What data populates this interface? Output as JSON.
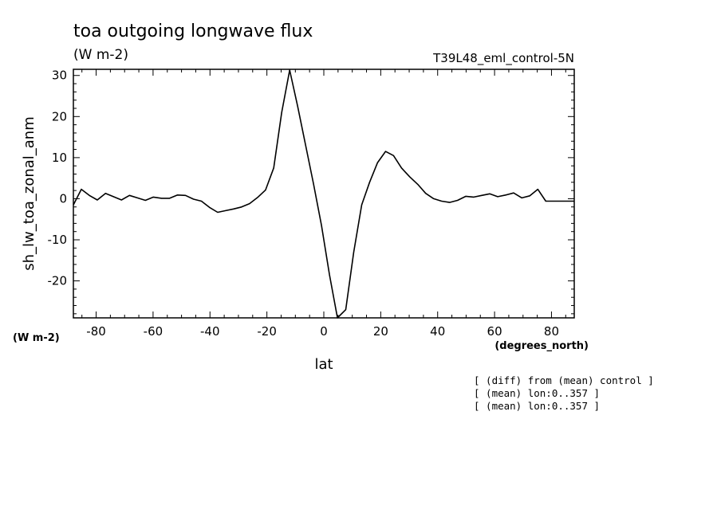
{
  "chart_data": {
    "type": "line",
    "title": "toa outgoing longwave flux",
    "subtitle": "(W m-2)",
    "run_label": "T39L48_eml_control-5N",
    "xlabel": "lat",
    "x_units": "(degrees_north)",
    "ylabel": "sh_lw_toa_zonal_anm",
    "y_units": "(W m-2)",
    "xlim": [
      -88,
      88
    ],
    "ylim": [
      -29,
      31.5
    ],
    "xticks": [
      -80,
      -60,
      -40,
      -20,
      0,
      20,
      40,
      60,
      80
    ],
    "yticks": [
      30,
      20,
      10,
      0,
      -10,
      -20
    ],
    "grid": false,
    "series": [
      {
        "x": [
          -88,
          -85.2,
          -82.4,
          -79.6,
          -76.7,
          -73.9,
          -71.1,
          -68.3,
          -65.5,
          -62.7,
          -59.9,
          -57,
          -54.2,
          -51.4,
          -48.6,
          -45.8,
          -43,
          -40.2,
          -37.3,
          -34.5,
          -31.7,
          -28.9,
          -26.1,
          -23.3,
          -20.5,
          -17.6,
          -14.8,
          -12,
          -9.2,
          -6.4,
          -3.6,
          -0.8,
          2,
          4.8,
          7.7,
          10.5,
          13.3,
          16.1,
          18.9,
          21.7,
          24.5,
          27.3,
          30.2,
          33,
          35.8,
          38.6,
          41.4,
          44.2,
          47,
          49.9,
          52.7,
          55.5,
          58.3,
          61.1,
          63.9,
          66.7,
          69.6,
          72.4,
          75.2,
          78,
          80.8,
          83.6,
          86.4,
          88
        ],
        "y": [
          -1.5,
          2.3,
          0.8,
          -0.3,
          1.3,
          0.5,
          -0.3,
          0.8,
          0.2,
          -0.4,
          0.4,
          0.1,
          0.1,
          0.9,
          0.8,
          -0.1,
          -0.6,
          -2.1,
          -3.3,
          -2.9,
          -2.5,
          -2.0,
          -1.2,
          0.3,
          2.1,
          7.5,
          21.0,
          31.3,
          22.5,
          13.0,
          3.5,
          -6.5,
          -18.5,
          -29.0,
          -27.0,
          -13.0,
          -1.5,
          4.0,
          8.8,
          11.5,
          10.5,
          7.5,
          5.3,
          3.5,
          1.3,
          0.0,
          -0.6,
          -0.9,
          -0.4,
          0.6,
          0.4,
          0.8,
          1.2,
          0.5,
          0.9,
          1.4,
          0.2,
          0.7,
          2.3,
          -0.6,
          -0.6,
          -0.6,
          -0.6,
          -0.6
        ]
      }
    ],
    "notes": [
      "[ (diff) from (mean) control ]",
      "[ (mean) lon:0..357 ]",
      "[ (mean) lon:0..357 ]"
    ],
    "line_color": "#000000"
  }
}
